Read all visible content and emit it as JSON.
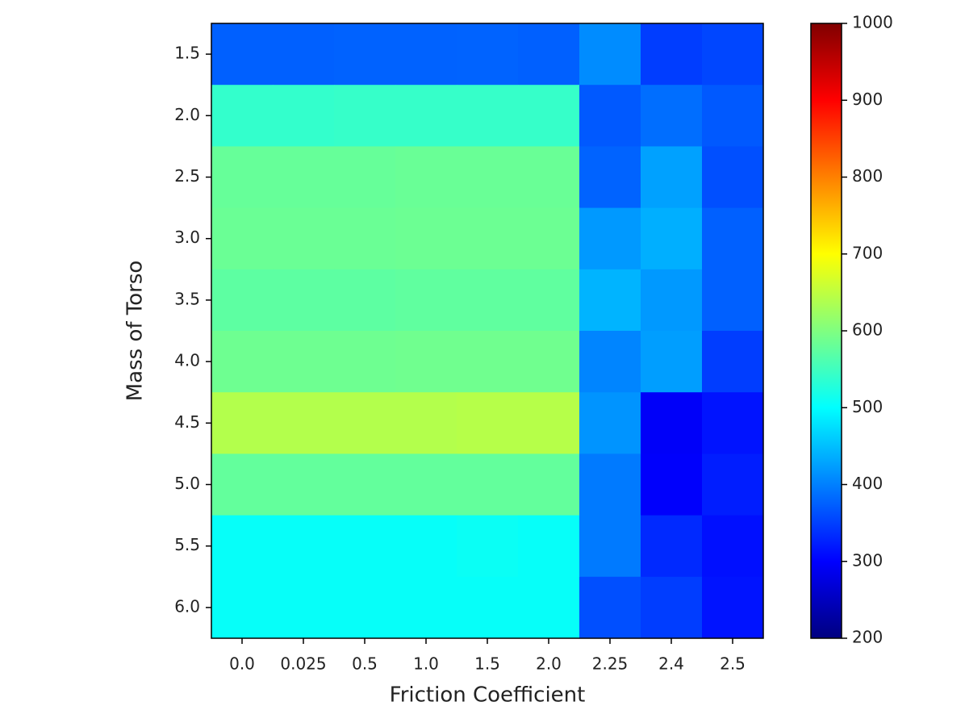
{
  "chart_data": {
    "type": "heatmap",
    "x_label": "Friction Coefficient",
    "y_label": "Mass of Torso",
    "x_categories": [
      "0.0",
      "0.025",
      "0.5",
      "1.0",
      "1.5",
      "2.0",
      "2.25",
      "2.4",
      "2.5"
    ],
    "y_categories": [
      "1.5",
      "2.0",
      "2.5",
      "3.0",
      "3.5",
      "4.0",
      "4.5",
      "5.0",
      "5.5",
      "6.0"
    ],
    "values": [
      [
        375,
        375,
        377,
        377,
        378,
        375,
        410,
        348,
        355
      ],
      [
        540,
        540,
        542,
        542,
        542,
        542,
        370,
        386,
        370
      ],
      [
        580,
        580,
        580,
        582,
        582,
        582,
        378,
        426,
        362
      ],
      [
        583,
        583,
        583,
        585,
        585,
        585,
        420,
        437,
        375
      ],
      [
        573,
        573,
        573,
        575,
        575,
        575,
        441,
        420,
        375
      ],
      [
        586,
        586,
        586,
        588,
        588,
        588,
        404,
        424,
        348
      ],
      [
        640,
        640,
        640,
        640,
        643,
        643,
        416,
        295,
        315
      ],
      [
        578,
        578,
        578,
        578,
        578,
        578,
        396,
        298,
        323
      ],
      [
        505,
        505,
        505,
        505,
        508,
        505,
        396,
        332,
        312
      ],
      [
        505,
        505,
        505,
        505,
        505,
        505,
        362,
        348,
        315
      ]
    ],
    "colormap": "jet",
    "clim": [
      200,
      1000
    ],
    "colorbar_ticks": [
      200,
      300,
      400,
      500,
      600,
      700,
      800,
      900,
      1000
    ]
  }
}
